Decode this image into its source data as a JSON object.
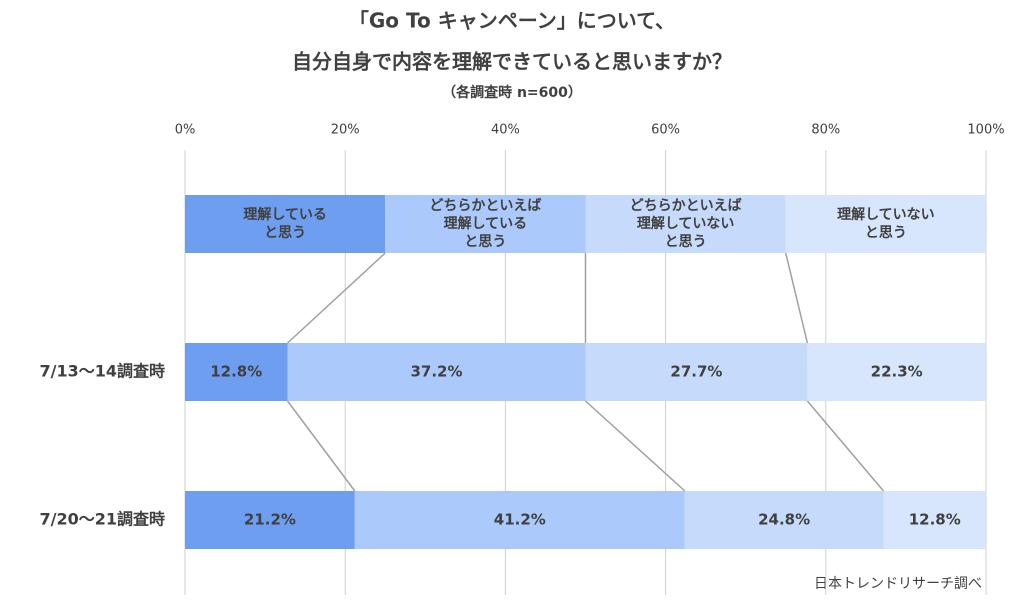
{
  "chart_data": {
    "type": "stacked-bar-horizontal",
    "title": "「Go To キャンペーン」について、",
    "title_line2": "自分自身で内容を理解できていると思いますか？",
    "subtitle": "（各調査時 n=600）",
    "source": "日本トレンドリサーチ調べ",
    "categories": [
      "7/13〜14調査時",
      "7/20〜21調査時"
    ],
    "series": [
      {
        "name": "理解している\nと思う",
        "color": "#6d9ef0",
        "values": [
          12.8,
          21.2
        ],
        "value_labels": [
          "12.8%",
          "21.2%"
        ]
      },
      {
        "name": "どちらかといえば\n理解している\nと思う",
        "color": "#abc9fa",
        "values": [
          37.2,
          41.2
        ],
        "value_labels": [
          "37.2%",
          "41.2%"
        ]
      },
      {
        "name": "どちらかといえば\n理解していない\nと思う",
        "color": "#c6dbfb",
        "values": [
          27.7,
          24.8
        ],
        "value_labels": [
          "27.7%",
          "24.8%"
        ]
      },
      {
        "name": "理解していない\nと思う",
        "color": "#d7e6fc",
        "values": [
          22.3,
          12.8
        ],
        "value_labels": [
          "22.3%",
          "12.8%"
        ]
      }
    ],
    "xlim": [
      0,
      100
    ],
    "xticks": [
      {
        "value": 0,
        "label": "0%"
      },
      {
        "value": 20,
        "label": "20%"
      },
      {
        "value": 40,
        "label": "40%"
      },
      {
        "value": 60,
        "label": "60%"
      },
      {
        "value": 80,
        "label": "80%"
      },
      {
        "value": 100,
        "label": "100%"
      }
    ],
    "grid": true
  }
}
